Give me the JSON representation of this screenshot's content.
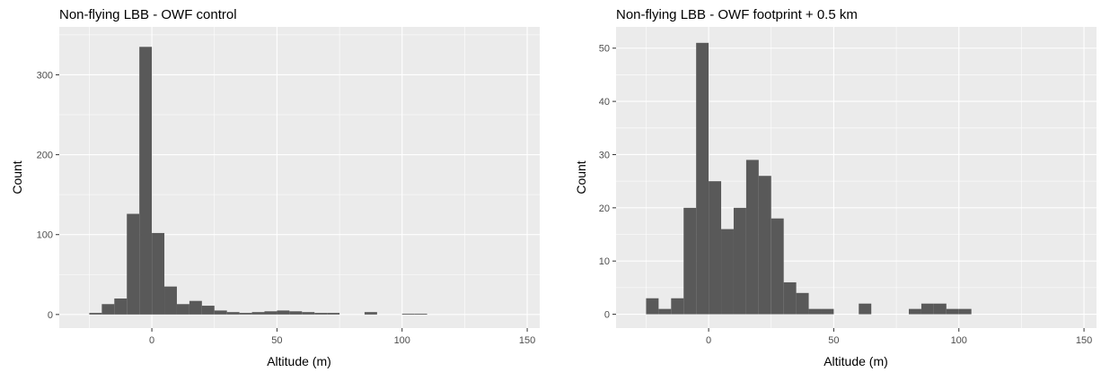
{
  "chart_data": [
    {
      "type": "histogram",
      "title": "Non-flying LBB - OWF control",
      "xlabel": "Altitude (m)",
      "ylabel": "Count",
      "xlim": [
        -37,
        155
      ],
      "ylim": [
        -17,
        360
      ],
      "x_ticks": [
        0,
        50,
        100,
        150
      ],
      "y_ticks": [
        0,
        100,
        200,
        300
      ],
      "bin_width": 5,
      "bins": [
        {
          "x0": -25,
          "x1": -20,
          "count": 2
        },
        {
          "x0": -20,
          "x1": -15,
          "count": 13
        },
        {
          "x0": -15,
          "x1": -10,
          "count": 20
        },
        {
          "x0": -10,
          "x1": -5,
          "count": 126
        },
        {
          "x0": -5,
          "x1": 0,
          "count": 335
        },
        {
          "x0": 0,
          "x1": 5,
          "count": 102
        },
        {
          "x0": 5,
          "x1": 10,
          "count": 35
        },
        {
          "x0": 10,
          "x1": 15,
          "count": 13
        },
        {
          "x0": 15,
          "x1": 20,
          "count": 17
        },
        {
          "x0": 20,
          "x1": 25,
          "count": 11
        },
        {
          "x0": 25,
          "x1": 30,
          "count": 5
        },
        {
          "x0": 30,
          "x1": 35,
          "count": 3
        },
        {
          "x0": 35,
          "x1": 40,
          "count": 2
        },
        {
          "x0": 40,
          "x1": 45,
          "count": 3
        },
        {
          "x0": 45,
          "x1": 50,
          "count": 4
        },
        {
          "x0": 50,
          "x1": 55,
          "count": 5
        },
        {
          "x0": 55,
          "x1": 60,
          "count": 4
        },
        {
          "x0": 60,
          "x1": 65,
          "count": 3
        },
        {
          "x0": 65,
          "x1": 70,
          "count": 2
        },
        {
          "x0": 70,
          "x1": 75,
          "count": 2
        },
        {
          "x0": 85,
          "x1": 90,
          "count": 3
        },
        {
          "x0": 100,
          "x1": 105,
          "count": 1
        },
        {
          "x0": 105,
          "x1": 110,
          "count": 1
        }
      ],
      "grid": true,
      "bar_color": "#595959",
      "panel_color": "#ebebeb",
      "grid_color": "#ffffff"
    },
    {
      "type": "histogram",
      "title": "Non-flying LBB - OWF footprint + 0.5 km",
      "xlabel": "Altitude (m)",
      "ylabel": "Count",
      "xlim": [
        -37,
        155
      ],
      "ylim": [
        -2.6,
        54
      ],
      "x_ticks": [
        0,
        50,
        100,
        150
      ],
      "y_ticks": [
        0,
        10,
        20,
        30,
        40,
        50
      ],
      "bin_width": 5,
      "bins": [
        {
          "x0": -25,
          "x1": -20,
          "count": 3
        },
        {
          "x0": -20,
          "x1": -15,
          "count": 1
        },
        {
          "x0": -15,
          "x1": -10,
          "count": 3
        },
        {
          "x0": -10,
          "x1": -5,
          "count": 20
        },
        {
          "x0": -5,
          "x1": 0,
          "count": 51
        },
        {
          "x0": 0,
          "x1": 5,
          "count": 25
        },
        {
          "x0": 5,
          "x1": 10,
          "count": 16
        },
        {
          "x0": 10,
          "x1": 15,
          "count": 20
        },
        {
          "x0": 15,
          "x1": 20,
          "count": 29
        },
        {
          "x0": 20,
          "x1": 25,
          "count": 26
        },
        {
          "x0": 25,
          "x1": 30,
          "count": 18
        },
        {
          "x0": 30,
          "x1": 35,
          "count": 6
        },
        {
          "x0": 35,
          "x1": 40,
          "count": 4
        },
        {
          "x0": 40,
          "x1": 45,
          "count": 1
        },
        {
          "x0": 45,
          "x1": 50,
          "count": 1
        },
        {
          "x0": 60,
          "x1": 65,
          "count": 2
        },
        {
          "x0": 80,
          "x1": 85,
          "count": 1
        },
        {
          "x0": 85,
          "x1": 90,
          "count": 2
        },
        {
          "x0": 90,
          "x1": 95,
          "count": 2
        },
        {
          "x0": 95,
          "x1": 100,
          "count": 1
        },
        {
          "x0": 100,
          "x1": 105,
          "count": 1
        }
      ],
      "grid": true,
      "bar_color": "#595959",
      "panel_color": "#ebebeb",
      "grid_color": "#ffffff"
    }
  ]
}
